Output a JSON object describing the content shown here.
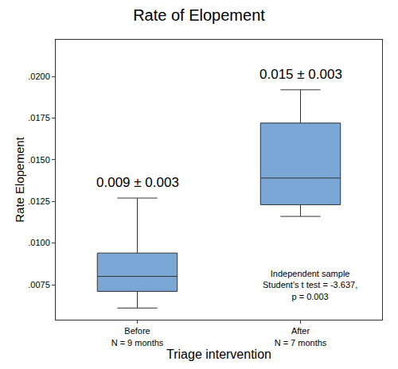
{
  "chart_data": {
    "type": "box",
    "title": "Rate of Elopement",
    "x_label": "Triage intervention",
    "y_label": "Rate Elopement",
    "categories": [
      "Before\nN = 9 months",
      "After\nN = 7 months"
    ],
    "boxes": {
      "lower": [
        0.0061,
        0.0116
      ],
      "q1": [
        0.0071,
        0.0123
      ],
      "median": [
        0.008,
        0.0139
      ],
      "q3": [
        0.0094,
        0.0172
      ],
      "upper": [
        0.0127,
        0.0192
      ]
    },
    "mean_labels": [
      "0.009 ± 0.003",
      "0.015 ± 0.003"
    ],
    "note": [
      "Independent sample",
      "Student's t test = -3.637,",
      "p = 0.003"
    ],
    "color": "#7ba7d6",
    "ylim": [
      0.0054,
      0.0222
    ],
    "yticks": [
      {
        "value": 0.0075,
        "label": ".0075"
      },
      {
        "value": 0.01,
        "label": ".0100"
      },
      {
        "value": 0.0125,
        "label": ".0125"
      },
      {
        "value": 0.015,
        "label": ".0150"
      },
      {
        "value": 0.0175,
        "label": ".0175"
      },
      {
        "value": 0.02,
        "label": ".0200"
      }
    ],
    "grid": false
  }
}
